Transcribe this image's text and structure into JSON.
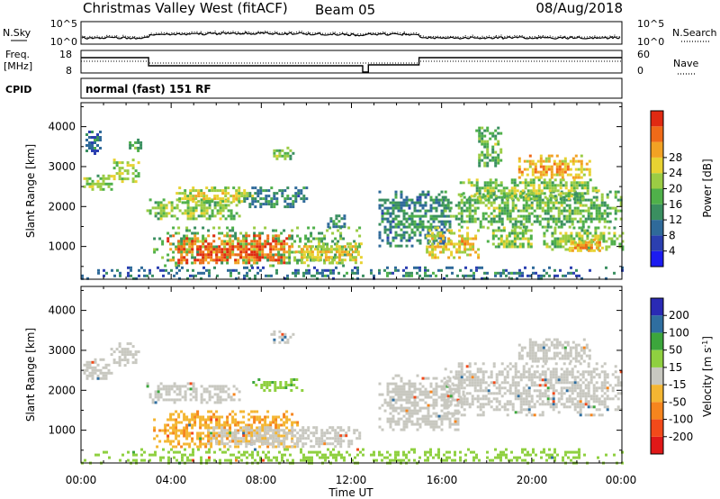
{
  "header": {
    "station": "Christmas Valley West (fitACF)",
    "beam": "Beam 05",
    "date": "08/Aug/2018"
  },
  "top_panels": {
    "nsky_label": "N.Sky",
    "nsky_ticks": [
      "10^5",
      "10^0"
    ],
    "nsearch_label": "N.Search",
    "nsearch_ticks": [
      "10^5",
      "10^0"
    ],
    "freq_label": "Freq.",
    "freq_unit": "[MHz]",
    "freq_ticks": [
      "18",
      "8"
    ],
    "nave_label": "Nave",
    "nave_ticks": [
      "60",
      "0"
    ],
    "cpid_label": "CPID",
    "cpid_text": "normal (fast) 151 RF"
  },
  "time_axis": {
    "title": "Time UT",
    "ticks": [
      "00:00",
      "04:00",
      "08:00",
      "12:00",
      "16:00",
      "20:00",
      "00:00"
    ]
  },
  "colors": {
    "ground_scatter": "#c8c8c0",
    "power_scale": [
      "#1c1cf0",
      "#2b3fb0",
      "#2f6a9a",
      "#3a8f60",
      "#4fb04a",
      "#9bcc44",
      "#e8d232",
      "#f2a224",
      "#f06a18",
      "#e02a12"
    ],
    "velocity_scale": [
      "#e01818",
      "#f24a1a",
      "#f6851e",
      "#f4b632",
      "#c8c8c0",
      "#8fd040",
      "#3ca63c",
      "#2f6ea0",
      "#2a2ab4"
    ]
  },
  "chart_data": [
    {
      "type": "heatmap",
      "name": "power-panel",
      "xlabel": "",
      "ylabel": "Slant Range [km]",
      "x_range_hours": [
        0,
        24
      ],
      "ylim": [
        180,
        4600
      ],
      "y_ticks": [
        "1000",
        "2000",
        "3000",
        "4000"
      ],
      "colorbar": {
        "label": "Power [dB]",
        "range": [
          0,
          32
        ],
        "ticks": [
          "4",
          "8",
          "12",
          "16",
          "20",
          "24",
          "28"
        ]
      },
      "regions": [
        {
          "t0": 0.1,
          "t1": 1.3,
          "r0": 2400,
          "r1": 2800,
          "value": 16
        },
        {
          "t0": 0.2,
          "t1": 0.9,
          "r0": 3300,
          "r1": 3900,
          "value": 8
        },
        {
          "t0": 1.3,
          "t1": 2.5,
          "r0": 2600,
          "r1": 3200,
          "value": 18
        },
        {
          "t0": 2.0,
          "t1": 2.7,
          "r0": 3400,
          "r1": 3700,
          "value": 12
        },
        {
          "t0": 2.9,
          "t1": 7.0,
          "r0": 1700,
          "r1": 2200,
          "value": 16
        },
        {
          "t0": 3.2,
          "t1": 12.4,
          "r0": 500,
          "r1": 1500,
          "value": 14
        },
        {
          "t0": 3.8,
          "t1": 9.4,
          "r0": 600,
          "r1": 1300,
          "value": 27
        },
        {
          "t0": 4.2,
          "t1": 7.6,
          "r0": 2100,
          "r1": 2500,
          "value": 18
        },
        {
          "t0": 7.2,
          "t1": 10.0,
          "r0": 2000,
          "r1": 2500,
          "value": 10
        },
        {
          "t0": 8.4,
          "t1": 9.4,
          "r0": 3200,
          "r1": 3500,
          "value": 14
        },
        {
          "t0": 9.5,
          "t1": 12.4,
          "r0": 600,
          "r1": 1100,
          "value": 20
        },
        {
          "t0": 10.8,
          "t1": 11.8,
          "r0": 1500,
          "r1": 1800,
          "value": 10
        },
        {
          "t0": 13.2,
          "t1": 16.4,
          "r0": 1000,
          "r1": 2400,
          "value": 10
        },
        {
          "t0": 15.3,
          "t1": 17.6,
          "r0": 700,
          "r1": 1500,
          "value": 20
        },
        {
          "t0": 16.0,
          "t1": 24.0,
          "r0": 1500,
          "r1": 2400,
          "value": 14
        },
        {
          "t0": 16.8,
          "t1": 23.0,
          "r0": 2200,
          "r1": 2700,
          "value": 16
        },
        {
          "t0": 17.5,
          "t1": 18.6,
          "r0": 3000,
          "r1": 4000,
          "value": 14
        },
        {
          "t0": 18.0,
          "t1": 20.0,
          "r0": 1000,
          "r1": 1500,
          "value": 16
        },
        {
          "t0": 19.4,
          "t1": 22.6,
          "r0": 2700,
          "r1": 3300,
          "value": 22
        },
        {
          "t0": 20.5,
          "t1": 24.0,
          "r0": 900,
          "r1": 1500,
          "value": 16
        },
        {
          "t0": 21.4,
          "t1": 23.2,
          "r0": 900,
          "r1": 1200,
          "value": 22
        },
        {
          "t0": 0.0,
          "t1": 24.0,
          "r0": 200,
          "r1": 500,
          "value": 8
        }
      ]
    },
    {
      "type": "heatmap",
      "name": "velocity-panel",
      "xlabel": "Time UT",
      "ylabel": "Slant Range [km]",
      "x_range_hours": [
        0,
        24
      ],
      "ylim": [
        180,
        4600
      ],
      "y_ticks": [
        "1000",
        "2000",
        "3000",
        "4000"
      ],
      "colorbar": {
        "label": "Velocity [m s^-1]",
        "unit_base": "Velocity [m s",
        "unit_exp": "-1",
        "unit_close": "]",
        "ticks": [
          "-200",
          "-100",
          "-50",
          "-15",
          "15",
          "50",
          "100",
          "200"
        ]
      },
      "regions": [
        {
          "t0": 0.1,
          "t1": 1.3,
          "r0": 2300,
          "r1": 2800,
          "value": 0
        },
        {
          "t0": 1.3,
          "t1": 2.6,
          "r0": 2600,
          "r1": 3200,
          "value": 0
        },
        {
          "t0": 2.9,
          "t1": 7.0,
          "r0": 1700,
          "r1": 2200,
          "value": 0
        },
        {
          "t0": 3.2,
          "t1": 9.6,
          "r0": 600,
          "r1": 1500,
          "value": -40
        },
        {
          "t0": 5.6,
          "t1": 12.4,
          "r0": 600,
          "r1": 1100,
          "value": 0
        },
        {
          "t0": 7.6,
          "t1": 9.8,
          "r0": 2000,
          "r1": 2300,
          "value": 40
        },
        {
          "t0": 8.4,
          "t1": 9.4,
          "r0": 3200,
          "r1": 3500,
          "value": 0
        },
        {
          "t0": 13.2,
          "t1": 17.0,
          "r0": 1000,
          "r1": 2400,
          "value": 0
        },
        {
          "t0": 16.0,
          "t1": 24.0,
          "r0": 1400,
          "r1": 2700,
          "value": 0
        },
        {
          "t0": 19.4,
          "t1": 22.6,
          "r0": 2700,
          "r1": 3300,
          "value": 0
        },
        {
          "t0": 0.0,
          "t1": 24.0,
          "r0": 200,
          "r1": 550,
          "value": 30
        }
      ]
    }
  ]
}
